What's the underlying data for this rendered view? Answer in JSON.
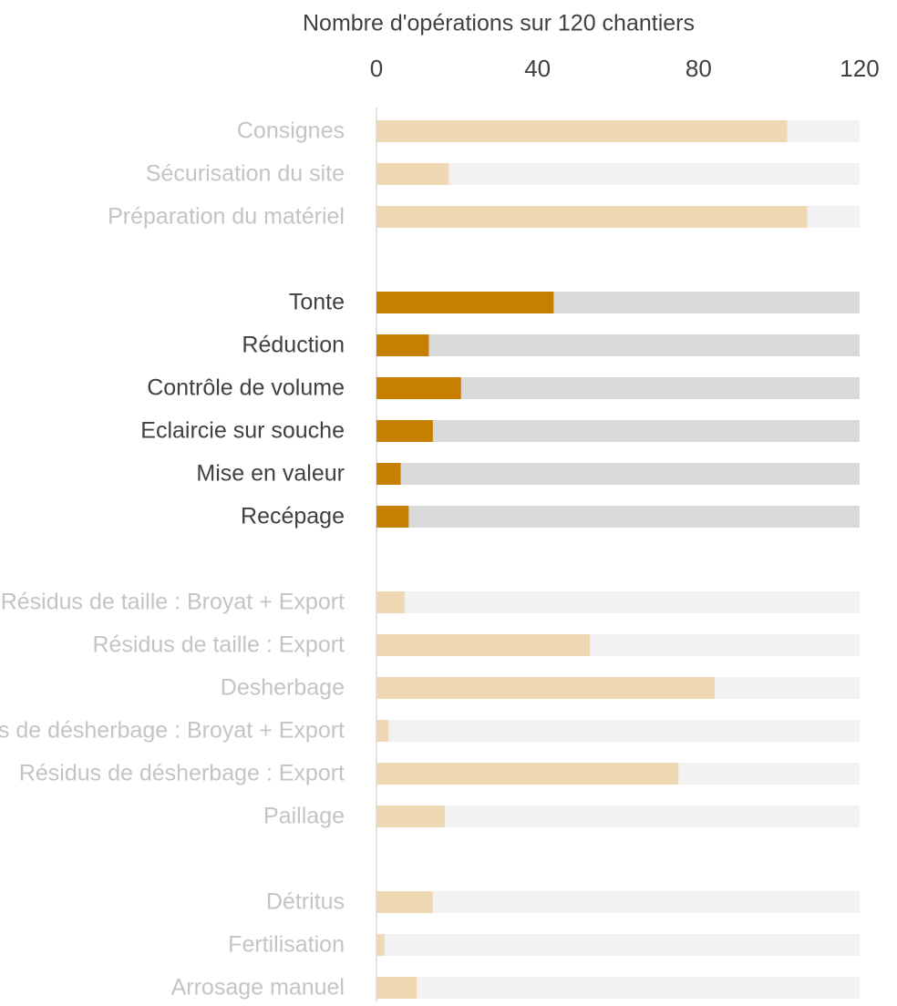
{
  "chart_data": {
    "type": "barh",
    "xlabel": "Nombre d'opérations sur 120 chantiers",
    "xlim": [
      0,
      120
    ],
    "xticks": [
      0,
      40,
      80,
      120
    ],
    "categories": [
      "Consignes",
      "Sécurisation du site",
      "Préparation du matériel",
      null,
      "Tonte",
      "Réduction",
      "Contrôle de volume",
      "Eclaircie sur souche",
      "Mise en valeur",
      "Recépage",
      null,
      "Résidus de taille : Broyat + Export",
      "Résidus de taille : Export",
      "Desherbage",
      "Résidus de désherbage : Broyat + Export",
      "Résidus de désherbage : Export",
      "Paillage",
      null,
      "Détritus",
      "Fertilisation",
      "Arrosage manuel"
    ],
    "values": [
      102,
      18,
      107,
      null,
      44,
      13,
      21,
      14,
      6,
      8,
      null,
      7,
      53,
      84,
      3,
      75,
      17,
      null,
      14,
      2,
      10
    ],
    "highlight": [
      false,
      false,
      false,
      null,
      true,
      true,
      true,
      true,
      true,
      true,
      null,
      false,
      false,
      false,
      false,
      false,
      false,
      null,
      false,
      false,
      false
    ],
    "color": "#c67f00",
    "faded_color": "#efd9b4",
    "track_color": "#d9d9d9",
    "faded_track_color": "#f2f2f2",
    "label_color": "#404040",
    "faded_label_color": "#c4c4c4"
  }
}
